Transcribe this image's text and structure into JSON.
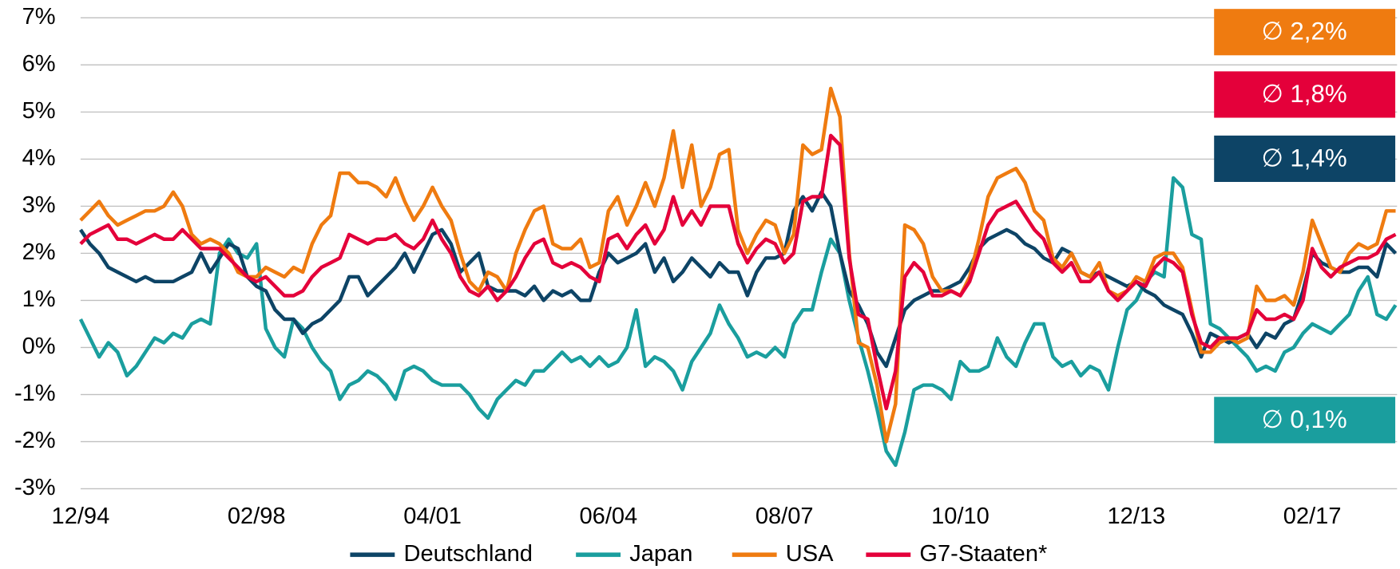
{
  "chart_data": {
    "type": "line",
    "categories": [
      "12/94",
      null,
      null,
      null,
      null,
      null,
      null,
      null,
      null,
      null,
      null,
      null,
      null,
      null,
      null,
      null,
      null,
      null,
      null,
      "02/98",
      null,
      null,
      null,
      null,
      null,
      null,
      null,
      null,
      null,
      null,
      null,
      null,
      null,
      null,
      null,
      null,
      null,
      null,
      "04/01",
      null,
      null,
      null,
      null,
      null,
      null,
      null,
      null,
      null,
      null,
      null,
      null,
      null,
      null,
      null,
      null,
      null,
      null,
      "06/04",
      null,
      null,
      null,
      null,
      null,
      null,
      null,
      null,
      null,
      null,
      null,
      null,
      null,
      null,
      null,
      null,
      null,
      null,
      "08/07",
      null,
      null,
      null,
      null,
      null,
      null,
      null,
      null,
      null,
      null,
      null,
      null,
      null,
      null,
      null,
      null,
      null,
      null,
      "10/10",
      null,
      null,
      null,
      null,
      null,
      null,
      null,
      null,
      null,
      null,
      null,
      null,
      null,
      null,
      null,
      null,
      null,
      null,
      "12/13",
      null,
      null,
      null,
      null,
      null,
      null,
      null,
      null,
      null,
      null,
      null,
      null,
      null,
      null,
      null,
      null,
      null,
      null,
      "02/17",
      null,
      null,
      null,
      null,
      null,
      null,
      null,
      null,
      null
    ],
    "series": [
      {
        "name": "Deutschland",
        "color": "#0d4466",
        "average_label": "∅ 1,4%",
        "values": [
          2.5,
          2.2,
          2.0,
          1.7,
          1.6,
          1.5,
          1.4,
          1.5,
          1.4,
          1.4,
          1.4,
          1.5,
          1.6,
          2.0,
          1.6,
          1.9,
          2.2,
          2.1,
          1.5,
          1.3,
          1.2,
          0.8,
          0.6,
          0.6,
          0.3,
          0.5,
          0.6,
          0.8,
          1.0,
          1.5,
          1.5,
          1.1,
          1.3,
          1.5,
          1.7,
          2.0,
          1.6,
          2.0,
          2.4,
          2.5,
          2.2,
          1.6,
          1.8,
          2.0,
          1.3,
          1.2,
          1.2,
          1.2,
          1.1,
          1.3,
          1.0,
          1.2,
          1.1,
          1.2,
          1.0,
          1.0,
          1.6,
          2.0,
          1.8,
          1.9,
          2.0,
          2.2,
          1.6,
          1.9,
          1.4,
          1.6,
          1.9,
          1.7,
          1.5,
          1.8,
          1.6,
          1.6,
          1.1,
          1.6,
          1.9,
          1.9,
          2.0,
          2.9,
          3.2,
          2.9,
          3.3,
          3.0,
          2.0,
          1.2,
          0.9,
          0.5,
          -0.1,
          -0.4,
          0.2,
          0.8,
          1.0,
          1.1,
          1.2,
          1.2,
          1.3,
          1.4,
          1.7,
          2.1,
          2.3,
          2.4,
          2.5,
          2.4,
          2.2,
          2.1,
          1.9,
          1.8,
          2.1,
          2.0,
          1.6,
          1.5,
          1.6,
          1.5,
          1.4,
          1.3,
          1.4,
          1.2,
          1.1,
          0.9,
          0.8,
          0.7,
          0.3,
          -0.2,
          0.3,
          0.2,
          0.1,
          0.2,
          0.3,
          0.0,
          0.3,
          0.2,
          0.5,
          0.6,
          1.2,
          2.0,
          1.8,
          1.7,
          1.6,
          1.6,
          1.7,
          1.7,
          1.5,
          2.2,
          2.0
        ]
      },
      {
        "name": "Japan",
        "color": "#1a9e9e",
        "average_label": "∅ 0,1%",
        "values": [
          0.6,
          0.2,
          -0.2,
          0.1,
          -0.1,
          -0.6,
          -0.4,
          -0.1,
          0.2,
          0.1,
          0.3,
          0.2,
          0.5,
          0.6,
          0.5,
          2.0,
          2.3,
          2.0,
          1.9,
          2.2,
          0.4,
          0.0,
          -0.2,
          0.6,
          0.4,
          0.0,
          -0.3,
          -0.5,
          -1.1,
          -0.8,
          -0.7,
          -0.5,
          -0.6,
          -0.8,
          -1.1,
          -0.5,
          -0.4,
          -0.5,
          -0.7,
          -0.8,
          -0.8,
          -0.8,
          -1.0,
          -1.3,
          -1.5,
          -1.1,
          -0.9,
          -0.7,
          -0.8,
          -0.5,
          -0.5,
          -0.3,
          -0.1,
          -0.3,
          -0.2,
          -0.4,
          -0.2,
          -0.4,
          -0.3,
          0.0,
          0.8,
          -0.4,
          -0.2,
          -0.3,
          -0.5,
          -0.9,
          -0.3,
          0.0,
          0.3,
          0.9,
          0.5,
          0.2,
          -0.2,
          -0.1,
          -0.2,
          0.0,
          -0.2,
          0.5,
          0.8,
          0.8,
          1.6,
          2.3,
          2.0,
          1.0,
          0.2,
          -0.5,
          -1.3,
          -2.2,
          -2.5,
          -1.8,
          -0.9,
          -0.8,
          -0.8,
          -0.9,
          -1.1,
          -0.3,
          -0.5,
          -0.5,
          -0.4,
          0.2,
          -0.2,
          -0.4,
          0.1,
          0.5,
          0.5,
          -0.2,
          -0.4,
          -0.3,
          -0.6,
          -0.4,
          -0.5,
          -0.9,
          0.0,
          0.8,
          1.0,
          1.4,
          1.6,
          1.5,
          3.6,
          3.4,
          2.4,
          2.3,
          0.5,
          0.4,
          0.2,
          0.0,
          -0.2,
          -0.5,
          -0.4,
          -0.5,
          -0.1,
          0.0,
          0.3,
          0.5,
          0.4,
          0.3,
          0.5,
          0.7,
          1.2,
          1.5,
          0.7,
          0.6,
          0.9
        ]
      },
      {
        "name": "USA",
        "color": "#ef7b10",
        "average_label": "∅ 2,2%",
        "values": [
          2.7,
          2.9,
          3.1,
          2.8,
          2.6,
          2.7,
          2.8,
          2.9,
          2.9,
          3.0,
          3.3,
          3.0,
          2.4,
          2.2,
          2.3,
          2.2,
          2.0,
          1.6,
          1.5,
          1.5,
          1.7,
          1.6,
          1.5,
          1.7,
          1.6,
          2.2,
          2.6,
          2.8,
          3.7,
          3.7,
          3.5,
          3.5,
          3.4,
          3.2,
          3.6,
          3.1,
          2.7,
          3.0,
          3.4,
          3.0,
          2.7,
          2.0,
          1.4,
          1.2,
          1.6,
          1.5,
          1.2,
          2.0,
          2.5,
          2.9,
          3.0,
          2.2,
          2.1,
          2.1,
          2.3,
          1.7,
          1.8,
          2.9,
          3.2,
          2.6,
          3.0,
          3.5,
          3.0,
          3.6,
          4.6,
          3.4,
          4.3,
          3.0,
          3.4,
          4.1,
          4.2,
          2.5,
          2.0,
          2.4,
          2.7,
          2.6,
          2.0,
          2.4,
          4.3,
          4.1,
          4.2,
          5.5,
          4.9,
          2.0,
          0.1,
          0.0,
          -0.8,
          -2.0,
          -1.2,
          2.6,
          2.5,
          2.2,
          1.5,
          1.2,
          1.2,
          1.1,
          1.5,
          2.3,
          3.2,
          3.6,
          3.7,
          3.8,
          3.5,
          2.9,
          2.7,
          1.9,
          1.7,
          2.0,
          1.6,
          1.5,
          1.8,
          1.2,
          1.1,
          1.2,
          1.5,
          1.4,
          1.9,
          2.0,
          2.0,
          1.7,
          0.8,
          -0.1,
          -0.1,
          0.1,
          0.2,
          0.1,
          0.2,
          1.3,
          1.0,
          1.0,
          1.1,
          0.9,
          1.6,
          2.7,
          2.2,
          1.7,
          1.6,
          2.0,
          2.2,
          2.1,
          2.2,
          2.9,
          2.9
        ]
      },
      {
        "name": "G7-Staaten*",
        "color": "#e4003a",
        "average_label": "∅ 1,8%",
        "values": [
          2.2,
          2.4,
          2.5,
          2.6,
          2.3,
          2.3,
          2.2,
          2.3,
          2.4,
          2.3,
          2.3,
          2.5,
          2.3,
          2.1,
          2.1,
          2.1,
          1.9,
          1.7,
          1.5,
          1.4,
          1.5,
          1.3,
          1.1,
          1.1,
          1.2,
          1.5,
          1.7,
          1.8,
          1.9,
          2.4,
          2.3,
          2.2,
          2.3,
          2.3,
          2.4,
          2.2,
          2.1,
          2.3,
          2.7,
          2.3,
          2.0,
          1.5,
          1.2,
          1.1,
          1.3,
          1.0,
          1.2,
          1.5,
          1.9,
          2.2,
          2.3,
          1.8,
          1.7,
          1.8,
          1.7,
          1.5,
          1.4,
          2.3,
          2.4,
          2.1,
          2.4,
          2.6,
          2.2,
          2.5,
          3.2,
          2.6,
          2.9,
          2.6,
          3.0,
          3.0,
          3.0,
          2.2,
          1.8,
          2.1,
          2.3,
          2.2,
          1.8,
          2.0,
          3.1,
          3.2,
          3.2,
          4.5,
          4.3,
          1.9,
          0.7,
          0.6,
          -0.4,
          -1.3,
          -0.5,
          1.5,
          1.8,
          1.6,
          1.1,
          1.1,
          1.2,
          1.1,
          1.4,
          2.0,
          2.6,
          2.9,
          3.0,
          3.1,
          2.8,
          2.5,
          2.3,
          1.8,
          1.6,
          1.8,
          1.4,
          1.4,
          1.6,
          1.2,
          1.0,
          1.2,
          1.4,
          1.3,
          1.7,
          1.9,
          1.8,
          1.6,
          0.7,
          0.1,
          0.0,
          0.2,
          0.2,
          0.2,
          0.3,
          0.8,
          0.6,
          0.6,
          0.7,
          0.6,
          1.0,
          2.1,
          1.7,
          1.5,
          1.7,
          1.8,
          1.9,
          1.9,
          2.0,
          2.3,
          2.4
        ]
      }
    ],
    "ylim": [
      -3,
      7
    ],
    "yticks": [
      {
        "value": -3,
        "label": "-3%"
      },
      {
        "value": -2,
        "label": "-2%"
      },
      {
        "value": -1,
        "label": "-1%"
      },
      {
        "value": 0,
        "label": "0%"
      },
      {
        "value": 1,
        "label": "1%"
      },
      {
        "value": 2,
        "label": "2%"
      },
      {
        "value": 3,
        "label": "3%"
      },
      {
        "value": 4,
        "label": "4%"
      },
      {
        "value": 5,
        "label": "5%"
      },
      {
        "value": 6,
        "label": "6%"
      },
      {
        "value": 7,
        "label": "7%"
      }
    ],
    "grid": true,
    "legend": "bottom"
  }
}
